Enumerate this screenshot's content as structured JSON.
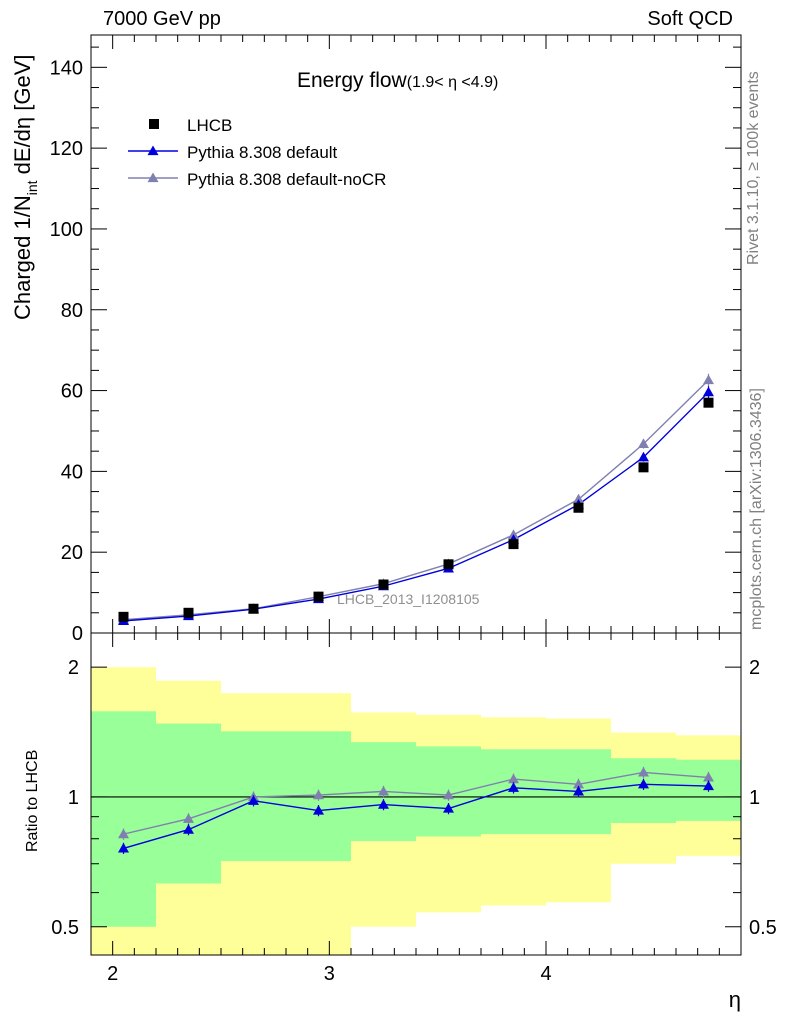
{
  "header": {
    "left": "7000 GeV pp",
    "right": "Soft QCD"
  },
  "side_text": {
    "rivet": "Rivet 3.1.10, ≥ 100k events",
    "mcplots": "mcplots.cern.ch [arXiv:1306.3436]"
  },
  "chart_data": [
    {
      "type": "scatter",
      "title": "Energy flow",
      "title_range": "(1.9< η <4.9)",
      "ylabel": "Charged 1/N",
      "ylabel_sub": "int",
      "ylabel_tail": " dE/dη [GeV]",
      "xlabel": "",
      "ylim": [
        0,
        148
      ],
      "xlim": [
        1.9,
        4.9
      ],
      "yticks": [
        "0",
        "20",
        "40",
        "60",
        "80",
        "100",
        "120",
        "140"
      ],
      "watermark": "LHCB_2013_I1208105",
      "legend_position": "top-left",
      "x": [
        2.05,
        2.35,
        2.65,
        2.95,
        3.25,
        3.55,
        3.85,
        4.15,
        4.45,
        4.75
      ],
      "x_edges": [
        1.9,
        2.2,
        2.5,
        2.8,
        3.1,
        3.4,
        3.7,
        4.0,
        4.3,
        4.6,
        4.9
      ],
      "series": [
        {
          "name": "LHCB",
          "marker": "square",
          "color": "#000000",
          "values": [
            4.0,
            5.0,
            6.0,
            9.0,
            12.0,
            17.0,
            22.0,
            31.0,
            41.0,
            57.0
          ]
        },
        {
          "name": "Pythia 8.308 default",
          "marker": "triangle",
          "color": "#0000dd",
          "values": [
            3.0,
            4.2,
            5.9,
            8.4,
            11.6,
            16.0,
            23.1,
            31.8,
            43.5,
            59.6
          ]
        },
        {
          "name": "Pythia 8.308 default-noCR",
          "marker": "triangle",
          "color": "#8080b0",
          "values": [
            3.3,
            4.5,
            6.0,
            9.0,
            12.2,
            17.1,
            24.3,
            33.1,
            46.8,
            62.6
          ]
        }
      ]
    },
    {
      "type": "scatter",
      "ylabel": "Ratio to LHCB",
      "xlabel": "η",
      "ylim": [
        0.43,
        2.4
      ],
      "yscale": "log",
      "xticks": [
        "2",
        "3",
        "4"
      ],
      "yticks": [
        "0.5",
        "1",
        "2"
      ],
      "reference_line": 1,
      "bands": {
        "green": {
          "color": "#99ff99",
          "low": [
            0.5,
            0.63,
            0.71,
            0.71,
            0.79,
            0.81,
            0.82,
            0.82,
            0.87,
            0.88
          ],
          "high": [
            1.58,
            1.48,
            1.42,
            1.42,
            1.34,
            1.31,
            1.29,
            1.29,
            1.23,
            1.22
          ]
        },
        "yellow": {
          "color": "#ffff99",
          "low": [
            0.3,
            0.3,
            0.3,
            0.3,
            0.5,
            0.54,
            0.56,
            0.57,
            0.7,
            0.73
          ],
          "high": [
            2.0,
            1.86,
            1.74,
            1.74,
            1.57,
            1.55,
            1.53,
            1.52,
            1.41,
            1.39
          ]
        }
      },
      "series": [
        {
          "name": "Pythia 8.308 default",
          "color": "#0000dd",
          "values": [
            0.76,
            0.84,
            0.98,
            0.93,
            0.96,
            0.94,
            1.05,
            1.03,
            1.07,
            1.06
          ]
        },
        {
          "name": "Pythia 8.308 default-noCR",
          "color": "#8080b0",
          "values": [
            0.82,
            0.89,
            1.0,
            1.01,
            1.03,
            1.01,
            1.1,
            1.07,
            1.14,
            1.11
          ]
        }
      ]
    }
  ]
}
